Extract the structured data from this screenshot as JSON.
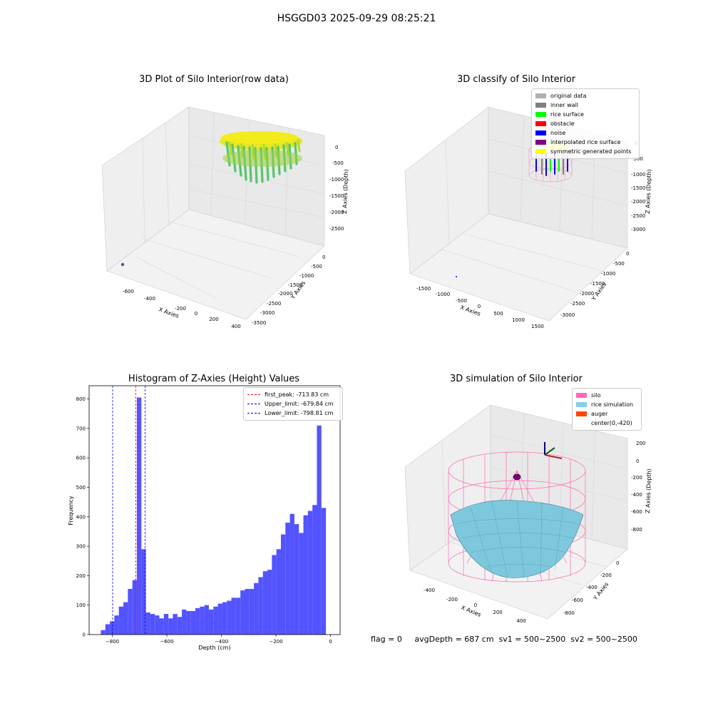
{
  "suptitle": "HSGGD03 2025-09-29 08:25:21",
  "footer": {
    "flag": "flag = 0",
    "avg_depth": "avgDepth = 687 cm",
    "sv1": "sv1 = 500~2500",
    "sv2": "sv2 = 500~2500"
  },
  "panels": {
    "raw": {
      "title": "3D Plot of Silo Interior(row data)",
      "xlabel": "X Axies",
      "ylabel": "Y Axies",
      "zlabel": "Z Axies (Depth)",
      "xticks": [
        "-600",
        "-400",
        "-200",
        "0",
        "200",
        "400"
      ],
      "yticks": [
        "0",
        "-500",
        "-1000",
        "-1500",
        "-2000",
        "-2500",
        "-3000",
        "-3500"
      ],
      "zticks": [
        "0",
        "-500",
        "-1000",
        "-1500",
        "-2000",
        "-2500"
      ]
    },
    "classify": {
      "title": "3D classify of Silo Interior",
      "xlabel": "X Axies",
      "ylabel": "Y Axies",
      "zlabel": "Z Axies (Depth)",
      "xticks": [
        "-1500",
        "-1000",
        "-500",
        "0",
        "500",
        "1000",
        "1500"
      ],
      "yticks": [
        "0",
        "-500",
        "-1000",
        "-1500",
        "-2000",
        "-2500",
        "-3000"
      ],
      "zticks": [
        "0",
        "-500",
        "-1000",
        "-1500",
        "-2000",
        "-2500",
        "-3000"
      ],
      "legend": [
        {
          "label": "original data",
          "color": "#b0b0b0"
        },
        {
          "label": "inner wall",
          "color": "#808080"
        },
        {
          "label": "rice surface",
          "color": "#00ff00"
        },
        {
          "label": "obstacle",
          "color": "#ff0000"
        },
        {
          "label": "noise",
          "color": "#0000ff"
        },
        {
          "label": "interpolated rice surface",
          "color": "#800080"
        },
        {
          "label": "symmetric generated points",
          "color": "#ffff00"
        }
      ]
    },
    "simulation": {
      "title": "3D simulation of Silo Interior",
      "xlabel": "X Axies",
      "ylabel": "Y Axies",
      "zlabel": "Z Axies (Depth)",
      "xticks": [
        "-400",
        "-200",
        "0",
        "200",
        "400"
      ],
      "yticks": [
        "0",
        "-200",
        "-400",
        "-600",
        "-800"
      ],
      "zticks": [
        "200",
        "0",
        "-200",
        "-400",
        "-600",
        "-800"
      ],
      "legend": [
        {
          "label": "silo",
          "color": "#ff69b4"
        },
        {
          "label": "rice simulation",
          "color": "#87ceeb"
        },
        {
          "label": "auger",
          "color": "#ff4500"
        },
        {
          "label": "center(0,-420)",
          "color": "#ffffff"
        }
      ]
    }
  },
  "chart_data": {
    "type": "bar",
    "title": "Histogram of Z-Axies (Height) Values",
    "xlabel": "Depth (cm)",
    "ylabel": "Frequency",
    "xlim": [
      -885,
      35
    ],
    "ylim": [
      0,
      845
    ],
    "xticks": [
      -800,
      -600,
      -400,
      -200,
      0
    ],
    "yticks": [
      0,
      100,
      200,
      300,
      400,
      500,
      600,
      700,
      800
    ],
    "bin_start": -842,
    "bin_width": 16.5,
    "values": [
      15,
      35,
      45,
      65,
      95,
      110,
      155,
      185,
      805,
      290,
      75,
      70,
      65,
      55,
      70,
      55,
      70,
      60,
      85,
      80,
      80,
      90,
      95,
      100,
      85,
      95,
      105,
      110,
      115,
      125,
      125,
      150,
      155,
      155,
      175,
      195,
      215,
      220,
      270,
      290,
      340,
      380,
      410,
      375,
      345,
      405,
      420,
      440,
      710,
      430
    ],
    "bar_color": "#4a4aff",
    "lines": [
      {
        "label": "first_peak: -713.83 cm",
        "x": -713.83,
        "color": "#ff0000"
      },
      {
        "label": "Upper_limit: -679.84 cm",
        "x": -679.84,
        "color": "#0000ff"
      },
      {
        "label": "Lower_limit: -798.81 cm",
        "x": -798.81,
        "color": "#0000ff"
      }
    ],
    "legend_position": "top-right"
  }
}
